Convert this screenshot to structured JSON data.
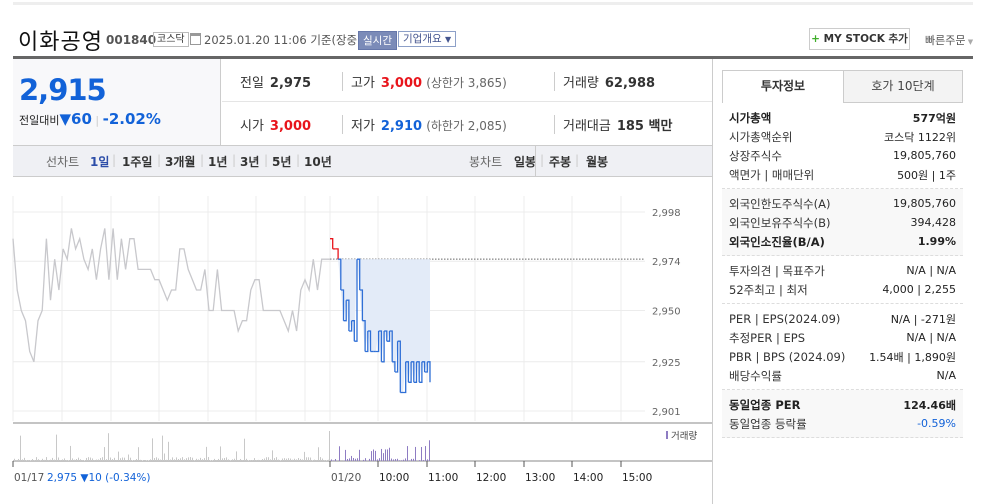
{
  "header": {
    "name": "이화공영",
    "code": "001840",
    "market": "코스닥",
    "datetime": "2025.01.20 11:06",
    "basis": "기준(장중)",
    "realtime": "실시간",
    "company_info": "기업개요",
    "mystock": "MY STOCK 추가",
    "quick_order": "빠른주문"
  },
  "price": {
    "current": "2,915",
    "compare_label": "전일대비",
    "change": "60",
    "change_pct": "-2.02%",
    "direction": "down"
  },
  "summary": {
    "prev_label": "전일",
    "prev": "2,975",
    "high_label": "고가",
    "high": "3,000",
    "upper_limit": "(상한가 3,865)",
    "volume_label": "거래량",
    "volume": "62,988",
    "open_label": "시가",
    "open": "3,000",
    "low_label": "저가",
    "low": "2,910",
    "lower_limit": "(하한가 2,085)",
    "amount_label": "거래대금",
    "amount": "185 백만"
  },
  "chart_tabs": {
    "line_label": "선차트",
    "line": [
      "1일",
      "1주일",
      "3개월",
      "1년",
      "3년",
      "5년",
      "10년"
    ],
    "active": "1일",
    "candle_label": "봉차트",
    "candle": [
      "일봉",
      "주봉",
      "월봉"
    ]
  },
  "side": {
    "tabs": [
      "투자정보",
      "호가 10단계"
    ],
    "sections": [
      [
        {
          "k": "시가총액",
          "v": "577억원",
          "bold": true
        },
        {
          "k": "시가총액순위",
          "v": "코스닥 1122위"
        },
        {
          "k": "상장주식수",
          "v": "19,805,760"
        },
        {
          "k": "액면가 | 매매단위",
          "v": "500원 | 1주"
        }
      ],
      [
        {
          "k": "외국인한도주식수(A)",
          "v": "19,805,760"
        },
        {
          "k": "외국인보유주식수(B)",
          "v": "394,428"
        },
        {
          "k": "외국인소진율(B/A)",
          "v": "1.99%",
          "bold": true
        }
      ],
      [
        {
          "k": "투자의견 | 목표주가",
          "v": "N/A | N/A"
        },
        {
          "k": "52주최고 | 최저",
          "v": "4,000 | 2,255"
        }
      ],
      [
        {
          "k": "PER | EPS(2024.09)",
          "v": "N/A | -271원"
        },
        {
          "k": "추정PER | EPS",
          "v": "N/A | N/A"
        },
        {
          "k": "PBR | BPS (2024.09)",
          "v": "1.54배 | 1,890원"
        },
        {
          "k": "배당수익률",
          "v": "N/A"
        }
      ],
      [
        {
          "k": "동일업종 PER",
          "v": "124.46배",
          "bold": true
        },
        {
          "k": "동일업종 등락률",
          "v": "-0.59%"
        }
      ]
    ]
  },
  "chart_data": {
    "type": "line",
    "y_ticks": [
      "2,998",
      "2,974",
      "2,950",
      "2,925",
      "2,901"
    ],
    "ylim": [
      2901,
      2998
    ],
    "prev_close": 2975,
    "x_ticks": [
      "01/17",
      "01/20",
      "10:00",
      "11:00",
      "12:00",
      "13:00",
      "14:00",
      "15:00"
    ],
    "prev_day_label": "01/17",
    "prev_day_summary": "2,975 ▼10 (-0.34%)",
    "volume_legend": "거래량",
    "prev_day_series": [
      2985,
      2960,
      2950,
      2945,
      2930,
      2925,
      2945,
      2950,
      2985,
      2955,
      2975,
      2960,
      2980,
      2975,
      2990,
      2980,
      2985,
      2975,
      2970,
      2980,
      2965,
      2980,
      2990,
      2965,
      2990,
      2965,
      2985,
      2970,
      2985,
      2985,
      2970,
      2970,
      2970,
      2970,
      2965,
      2965,
      2960,
      2955,
      2960,
      2960,
      2980,
      2980,
      2970,
      2965,
      2960,
      2960,
      2970,
      2950,
      2950,
      2970,
      2950,
      2950,
      2950,
      2950,
      2940,
      2945,
      2945,
      2960,
      2965,
      2965,
      2950,
      2950,
      2950,
      2950,
      2950,
      2945,
      2940,
      2950,
      2940,
      2960,
      2965,
      2960,
      2975,
      2960,
      2975,
      2975,
      2975
    ],
    "today_series": [
      2985,
      2980,
      2980,
      2975,
      2960,
      2945,
      2955,
      2940,
      2945,
      2935,
      2975,
      2960,
      2945,
      2930,
      2940,
      2930,
      2930,
      2930,
      2940,
      2925,
      2940,
      2935,
      2940,
      2925,
      2920,
      2935,
      2910,
      2910,
      2925,
      2915,
      2925,
      2915,
      2925,
      2915,
      2925,
      2920,
      2925,
      2915
    ],
    "colors": {
      "prev_day": "#c8c8cc",
      "down": "#2f6fd6",
      "up": "#e8141b",
      "fill": "#e3ebf8",
      "volume_today": "#8e7cc3",
      "volume_prev": "#c8c8c8"
    }
  }
}
